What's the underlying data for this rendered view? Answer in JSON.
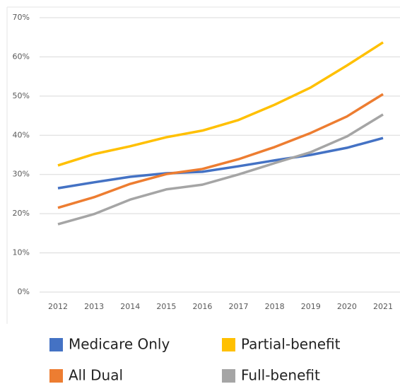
{
  "chart_data": {
    "type": "line",
    "categories": [
      "2012",
      "2013",
      "2014",
      "2015",
      "2016",
      "2017",
      "2018",
      "2019",
      "2020",
      "2021"
    ],
    "series": [
      {
        "name": "Medicare Only",
        "color": "#4472c4",
        "values": [
          26.5,
          28,
          29.4,
          30.3,
          30.7,
          32.1,
          33.6,
          35,
          36.8,
          39.3
        ]
      },
      {
        "name": "All Dual",
        "color": "#ed7d31",
        "values": [
          21.5,
          24.2,
          27.6,
          30.1,
          31.4,
          33.9,
          37,
          40.6,
          44.8,
          50.5
        ]
      },
      {
        "name": "Partial-benefit",
        "color": "#ffc000",
        "values": [
          32.3,
          35.2,
          37.2,
          39.5,
          41.2,
          43.9,
          47.8,
          52.2,
          57.8,
          63.7
        ]
      },
      {
        "name": "Full-benefit",
        "color": "#a5a5a5",
        "values": [
          17.3,
          19.9,
          23.6,
          26.2,
          27.4,
          30,
          32.9,
          35.7,
          39.7,
          45.3
        ]
      }
    ],
    "ylim": [
      0,
      70
    ],
    "yticks": [
      {
        "value": 0,
        "label": "0%"
      },
      {
        "value": 10,
        "label": "10%"
      },
      {
        "value": 20,
        "label": "20%"
      },
      {
        "value": 30,
        "label": "30%"
      },
      {
        "value": 40,
        "label": "40%"
      },
      {
        "value": 50,
        "label": "50%"
      },
      {
        "value": 60,
        "label": "60%"
      },
      {
        "value": 70,
        "label": "70%"
      }
    ],
    "grid": true,
    "legend": "bottom"
  }
}
